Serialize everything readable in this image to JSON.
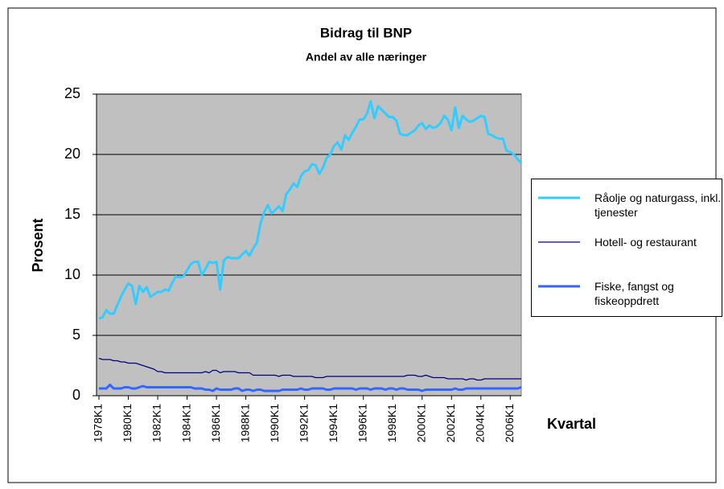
{
  "chart_data": {
    "type": "line",
    "title": "Bidrag til BNP",
    "subtitle": "Andel av alle næringer",
    "x_label": "Kvartal",
    "y_label": "Prosent",
    "categories": [
      "1978K1",
      null,
      null,
      null,
      null,
      null,
      null,
      null,
      "1980K1",
      null,
      null,
      null,
      null,
      null,
      null,
      null,
      "1982K1",
      null,
      null,
      null,
      null,
      null,
      null,
      null,
      "1984K1",
      null,
      null,
      null,
      null,
      null,
      null,
      null,
      "1986K1",
      null,
      null,
      null,
      null,
      null,
      null,
      null,
      "1988K1",
      null,
      null,
      null,
      null,
      null,
      null,
      null,
      "1990K1",
      null,
      null,
      null,
      null,
      null,
      null,
      null,
      "1992K1",
      null,
      null,
      null,
      null,
      null,
      null,
      null,
      "1994K1",
      null,
      null,
      null,
      null,
      null,
      null,
      null,
      "1996K1",
      null,
      null,
      null,
      null,
      null,
      null,
      null,
      "1998K1",
      null,
      null,
      null,
      null,
      null,
      null,
      null,
      "2000K1",
      null,
      null,
      null,
      null,
      null,
      null,
      null,
      "2002K1",
      null,
      null,
      null,
      null,
      null,
      null,
      null,
      "2004K1",
      null,
      null,
      null,
      null,
      null,
      null,
      null,
      "2006K1",
      null,
      null,
      null
    ],
    "series": [
      {
        "name": "Råolje og naturgass, inkl. tjenester",
        "color": "#33ccff",
        "width": 3,
        "values": [
          6.4,
          6.5,
          7.1,
          6.8,
          6.8,
          7.5,
          8.2,
          8.8,
          9.3,
          9.1,
          7.6,
          9.1,
          8.6,
          9.0,
          8.2,
          8.4,
          8.6,
          8.6,
          8.8,
          8.7,
          9.4,
          9.9,
          9.8,
          9.9,
          10.4,
          10.9,
          11.1,
          11.1,
          10.0,
          10.5,
          11.1,
          11.0,
          11.1,
          8.8,
          11.2,
          11.5,
          11.4,
          11.4,
          11.4,
          11.7,
          12.0,
          11.6,
          12.2,
          12.7,
          14.3,
          15.2,
          15.8,
          15.1,
          15.4,
          15.7,
          15.3,
          16.7,
          17.1,
          17.6,
          17.3,
          18.2,
          18.6,
          18.7,
          19.2,
          19.1,
          18.4,
          18.9,
          19.7,
          20.0,
          20.7,
          21.0,
          20.4,
          21.6,
          21.2,
          21.8,
          22.3,
          22.9,
          22.9,
          23.4,
          24.4,
          23.0,
          24.0,
          23.7,
          23.4,
          23.1,
          23.1,
          22.8,
          21.7,
          21.6,
          21.6,
          21.8,
          22.0,
          22.4,
          22.6,
          22.1,
          22.4,
          22.2,
          22.3,
          22.6,
          23.2,
          22.9,
          22.0,
          23.9,
          22.2,
          23.2,
          22.9,
          22.7,
          22.8,
          23.0,
          23.2,
          23.1,
          21.7,
          21.6,
          21.4,
          21.3,
          21.3,
          20.3,
          20.2,
          20.0,
          19.6,
          19.3
        ]
      },
      {
        "name": "Hotell- og restaurant",
        "color": "#000080",
        "width": 1.2,
        "values": [
          3.1,
          3.0,
          3.0,
          3.0,
          2.9,
          2.9,
          2.8,
          2.8,
          2.7,
          2.7,
          2.7,
          2.6,
          2.5,
          2.4,
          2.3,
          2.2,
          2.0,
          2.0,
          1.9,
          1.9,
          1.9,
          1.9,
          1.9,
          1.9,
          1.9,
          1.9,
          1.9,
          1.9,
          1.9,
          2.0,
          1.9,
          2.1,
          2.1,
          1.9,
          2.0,
          2.0,
          2.0,
          2.0,
          1.9,
          1.9,
          1.9,
          1.9,
          1.7,
          1.7,
          1.7,
          1.7,
          1.7,
          1.7,
          1.7,
          1.6,
          1.7,
          1.7,
          1.7,
          1.6,
          1.6,
          1.6,
          1.6,
          1.6,
          1.6,
          1.5,
          1.5,
          1.5,
          1.6,
          1.6,
          1.6,
          1.6,
          1.6,
          1.6,
          1.6,
          1.6,
          1.6,
          1.6,
          1.6,
          1.6,
          1.6,
          1.6,
          1.6,
          1.6,
          1.6,
          1.6,
          1.6,
          1.6,
          1.6,
          1.6,
          1.7,
          1.7,
          1.7,
          1.6,
          1.6,
          1.7,
          1.6,
          1.5,
          1.5,
          1.5,
          1.5,
          1.4,
          1.4,
          1.4,
          1.4,
          1.4,
          1.3,
          1.4,
          1.4,
          1.3,
          1.3,
          1.4,
          1.4,
          1.4,
          1.4,
          1.4,
          1.4,
          1.4,
          1.4,
          1.4,
          1.4,
          1.4
        ]
      },
      {
        "name": "Fiske, fangst og fiskeoppdrett",
        "color": "#3366ff",
        "width": 3,
        "values": [
          0.6,
          0.6,
          0.6,
          0.9,
          0.6,
          0.6,
          0.6,
          0.7,
          0.7,
          0.6,
          0.6,
          0.7,
          0.8,
          0.7,
          0.7,
          0.7,
          0.7,
          0.7,
          0.7,
          0.7,
          0.7,
          0.7,
          0.7,
          0.7,
          0.7,
          0.7,
          0.6,
          0.6,
          0.6,
          0.5,
          0.5,
          0.4,
          0.6,
          0.5,
          0.5,
          0.5,
          0.5,
          0.6,
          0.6,
          0.4,
          0.5,
          0.5,
          0.4,
          0.5,
          0.5,
          0.4,
          0.4,
          0.4,
          0.4,
          0.4,
          0.5,
          0.5,
          0.5,
          0.5,
          0.5,
          0.6,
          0.5,
          0.5,
          0.6,
          0.6,
          0.6,
          0.6,
          0.5,
          0.5,
          0.6,
          0.6,
          0.6,
          0.6,
          0.6,
          0.6,
          0.5,
          0.6,
          0.6,
          0.6,
          0.5,
          0.6,
          0.6,
          0.6,
          0.5,
          0.6,
          0.6,
          0.5,
          0.6,
          0.6,
          0.5,
          0.5,
          0.5,
          0.5,
          0.4,
          0.5,
          0.5,
          0.5,
          0.5,
          0.5,
          0.5,
          0.5,
          0.5,
          0.6,
          0.5,
          0.5,
          0.6,
          0.6,
          0.6,
          0.6,
          0.6,
          0.6,
          0.6,
          0.6,
          0.6,
          0.6,
          0.6,
          0.6,
          0.6,
          0.6,
          0.6,
          0.7
        ]
      }
    ],
    "ylim": [
      0,
      25
    ],
    "yticks": [
      0,
      5,
      10,
      15,
      20,
      25
    ],
    "grid": true
  }
}
